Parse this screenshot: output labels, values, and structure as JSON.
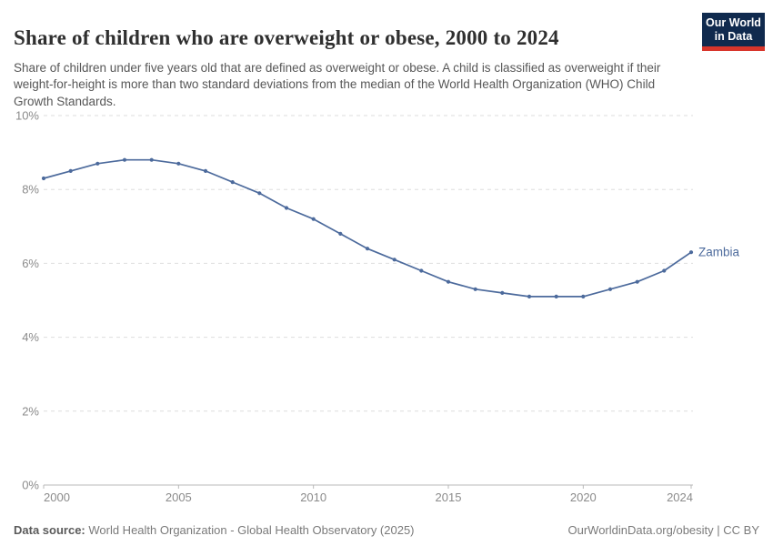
{
  "header": {
    "title": "Share of children who are overweight or obese, 2000 to 2024",
    "subtitle": "Share of children under five years old that are defined as overweight or obese. A child is classified as overweight if their weight-for-height is more than two standard deviations from the median of the World Health Organization (WHO) Child Growth Standards.",
    "logo": {
      "line1": "Our World",
      "line2": "in Data",
      "bg_color": "#102a4e",
      "stripe_color": "#d8352b"
    }
  },
  "chart_data": {
    "type": "line",
    "title": "Share of children who are overweight or obese, 2000 to 2024",
    "xlabel": "",
    "ylabel": "",
    "ylim": [
      0,
      10
    ],
    "xlim": [
      2000,
      2024
    ],
    "grid": "horizontal-dashed",
    "legend_position": "end-of-line-label",
    "x": [
      2000,
      2001,
      2002,
      2003,
      2004,
      2005,
      2006,
      2007,
      2008,
      2009,
      2010,
      2011,
      2012,
      2013,
      2014,
      2015,
      2016,
      2017,
      2018,
      2019,
      2020,
      2021,
      2022,
      2023,
      2024
    ],
    "series": [
      {
        "name": "Zambia",
        "color": "#4c6a9c",
        "values": [
          8.3,
          8.5,
          8.7,
          8.8,
          8.8,
          8.7,
          8.5,
          8.2,
          7.9,
          7.5,
          7.2,
          6.8,
          6.4,
          6.1,
          5.8,
          5.5,
          5.3,
          5.2,
          5.1,
          5.1,
          5.1,
          5.3,
          5.5,
          5.8,
          6.3
        ]
      }
    ],
    "yticks": [
      {
        "value": 0,
        "label": "0%"
      },
      {
        "value": 2,
        "label": "2%"
      },
      {
        "value": 4,
        "label": "4%"
      },
      {
        "value": 6,
        "label": "6%"
      },
      {
        "value": 8,
        "label": "8%"
      },
      {
        "value": 10,
        "label": "10%"
      }
    ],
    "xticks": [
      {
        "value": 2000,
        "label": "2000"
      },
      {
        "value": 2005,
        "label": "2005"
      },
      {
        "value": 2010,
        "label": "2010"
      },
      {
        "value": 2015,
        "label": "2015"
      },
      {
        "value": 2020,
        "label": "2020"
      },
      {
        "value": 2024,
        "label": "2024"
      }
    ],
    "end_label": "Zambia"
  },
  "footer": {
    "datasource_label": "Data source:",
    "datasource_text": " World Health Organization - Global Health Observatory (2025)",
    "right_text": "OurWorldinData.org/obesity | CC BY"
  }
}
